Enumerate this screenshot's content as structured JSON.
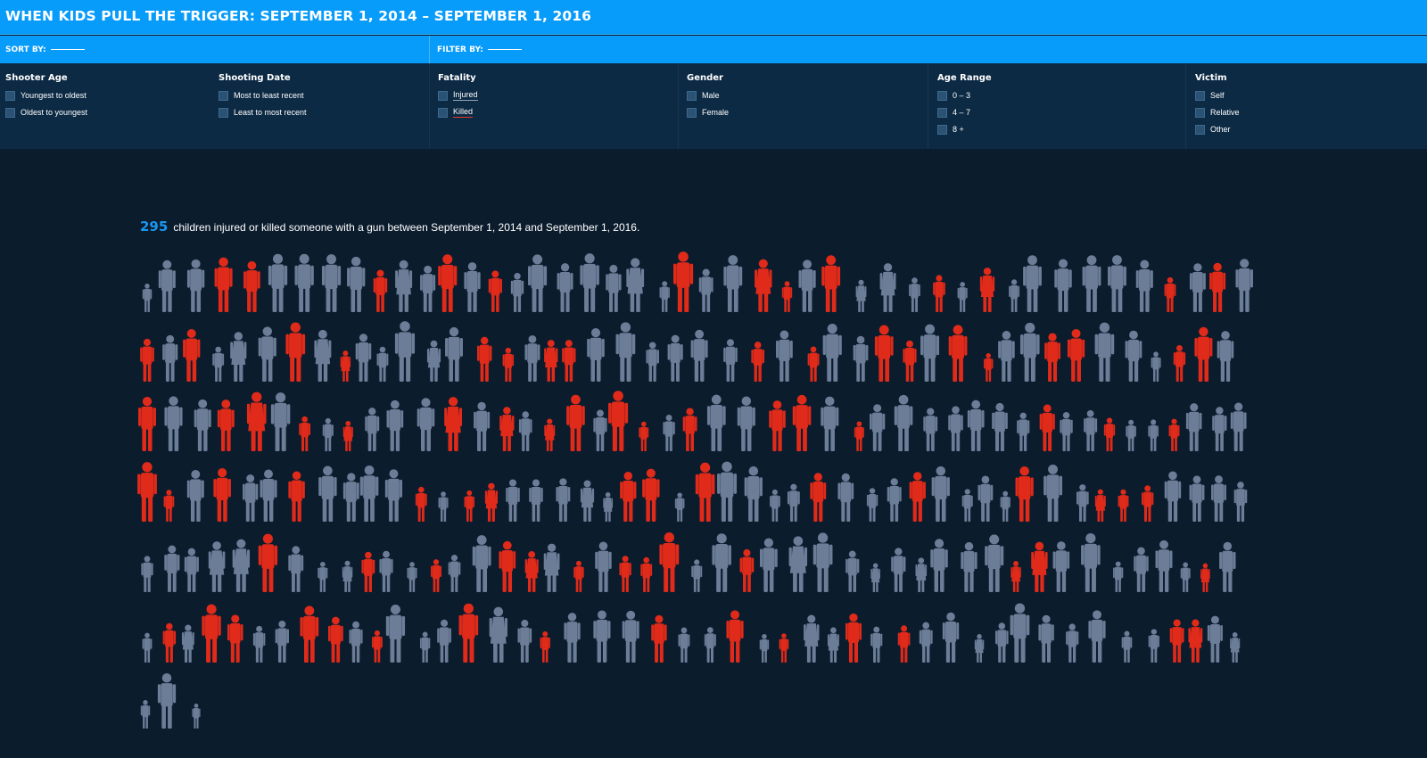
{
  "header": {
    "title": "WHEN KIDS PULL THE TRIGGER: SEPTEMBER 1, 2014 – SEPTEMBER 1, 2016"
  },
  "controls": {
    "sort_label": "SORT BY:",
    "filter_label": "FILTER BY:"
  },
  "filters": {
    "shooter_age": {
      "title": "Shooter Age",
      "options": [
        "Youngest to oldest",
        "Oldest to youngest"
      ]
    },
    "shooting_date": {
      "title": "Shooting Date",
      "options": [
        "Most to least recent",
        "Least to most recent"
      ]
    },
    "fatality": {
      "title": "Fatality",
      "options": [
        "Injured",
        "Killed"
      ]
    },
    "gender": {
      "title": "Gender",
      "options": [
        "Male",
        "Female"
      ]
    },
    "age_range": {
      "title": "Age Range",
      "options": [
        "0 – 3",
        "4 – 7",
        "8 +"
      ]
    },
    "victim": {
      "title": "Victim",
      "options": [
        "Self",
        "Relative",
        "Other"
      ]
    }
  },
  "summary": {
    "count": "295",
    "text": "children injured or killed someone with a gun between September 1, 2014 and September 1, 2016."
  },
  "colors": {
    "titlebar": "#079bfa",
    "panel": "#0c2a44",
    "background": "#0b1c2d",
    "injured_figure": "#6b7d97",
    "killed_figure": "#e02a1a",
    "count_accent": "#1996ee"
  },
  "legend": {
    "killed_color_meaning": "Killed",
    "injured_color_meaning": "Injured"
  }
}
